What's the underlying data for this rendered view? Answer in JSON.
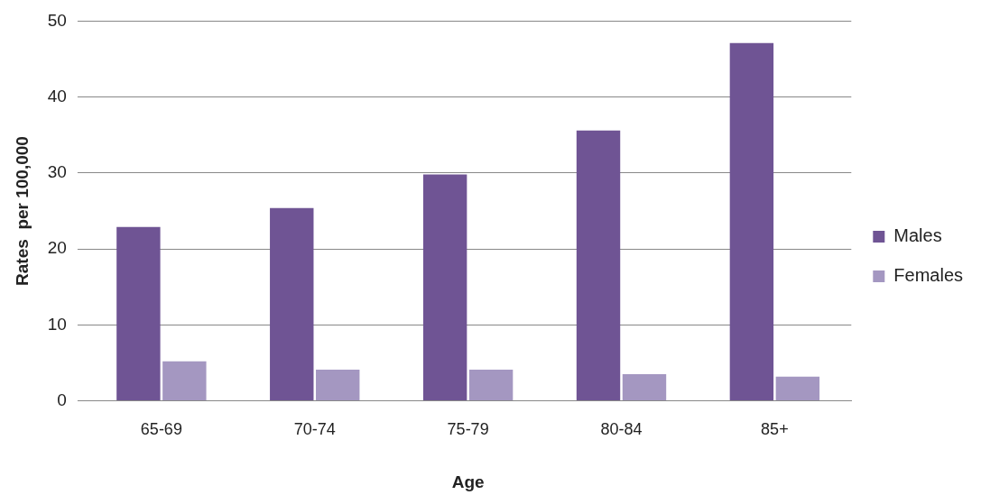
{
  "chart_data": {
    "type": "bar",
    "xlabel": "Age",
    "ylabel": "Rates  per 100,000",
    "categories": [
      "65-69",
      "70-74",
      "75-79",
      "80-84",
      "85+"
    ],
    "series": [
      {
        "name": "Males",
        "color": "#6f5494",
        "values": [
          22.9,
          25.4,
          29.8,
          35.6,
          47.1
        ]
      },
      {
        "name": "Females",
        "color": "#a497c1",
        "values": [
          5.2,
          4.1,
          4.1,
          3.5,
          3.2
        ]
      }
    ],
    "ylim": [
      0,
      50
    ],
    "yticks": [
      0,
      10,
      20,
      30,
      40,
      50
    ],
    "grid": "y",
    "legend": "right"
  }
}
